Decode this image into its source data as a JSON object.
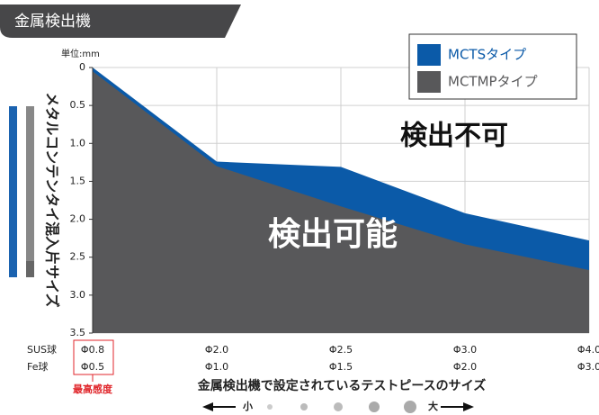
{
  "chart_data": {
    "type": "area",
    "title": "金属検出機",
    "unit_label": "単位:mm",
    "y_label": "メタルコンテンタイ混入片サイズ",
    "x_label": "金属検出機で設定されているテストピースのサイズ",
    "scale_small": "小",
    "scale_large": "大",
    "row_labels": [
      "SUS球",
      "Fe球"
    ],
    "categories": [
      "Φ0.8",
      "Φ2.0",
      "Φ2.5",
      "Φ3.0",
      "Φ4.0"
    ],
    "fe_categories": [
      "Φ0.5",
      "Φ1.0",
      "Φ1.5",
      "Φ2.0",
      "Φ3.0"
    ],
    "annotations": [
      "最高感度",
      "検出不可",
      "検出可能"
    ],
    "y_inverted": true,
    "ylim": [
      0,
      3.5
    ],
    "yticks": [
      0,
      0.5,
      {
        "value": 1,
        "label": "1.0"
      },
      1.5,
      {
        "value": 2,
        "label": "2.0"
      },
      2.5,
      {
        "value": 3,
        "label": "3.0"
      },
      3.5
    ],
    "grid": true,
    "legend": "top-right",
    "series": [
      {
        "name": "MCTSタイプ",
        "color": "#0b5aa8",
        "values": [
          0,
          1.24,
          1.31,
          1.92,
          2.28
        ]
      },
      {
        "name": "MCTMPタイプ",
        "color": "#58585a",
        "values": [
          0.05,
          1.3,
          1.83,
          2.33,
          2.67
        ]
      }
    ]
  }
}
